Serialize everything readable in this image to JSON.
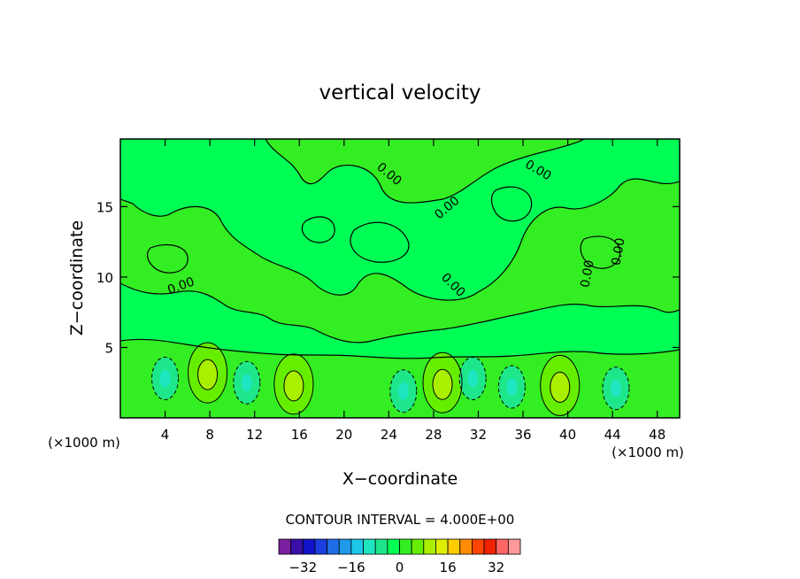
{
  "chart_data": {
    "type": "heatmap",
    "title": "vertical velocity",
    "xlabel": "X−coordinate",
    "ylabel": "Z−coordinate",
    "x_unit": "(×1000 m)",
    "y_unit": "(×1000 m)",
    "xlim": [
      0,
      50
    ],
    "ylim": [
      0,
      19.8
    ],
    "x_ticks": [
      4,
      8,
      12,
      16,
      20,
      24,
      28,
      32,
      36,
      40,
      44,
      48
    ],
    "y_ticks": [
      5,
      10,
      15
    ],
    "contour_interval_text": "CONTOUR INTERVAL = 4.000E+00",
    "contour_line_label": "0.00",
    "colorbar": {
      "levels": [
        -36,
        -32,
        -28,
        -24,
        -20,
        -16,
        -12,
        -8,
        -4,
        0,
        4,
        8,
        12,
        16,
        20,
        24,
        28,
        32,
        36
      ],
      "colors": [
        "#7a1fa0",
        "#3a0fa8",
        "#1212c8",
        "#1a3ee0",
        "#1f6ee8",
        "#1e9ae8",
        "#1ec8e8",
        "#1ee6c0",
        "#1ee68a",
        "#00ff55",
        "#33ee22",
        "#66ee00",
        "#aaee00",
        "#ddee00",
        "#ffcc00",
        "#ff8c00",
        "#ff4400",
        "#ee2200",
        "#ff6666",
        "#ff9999"
      ],
      "tick_labels": [
        {
          "value": -32,
          "text": "−32"
        },
        {
          "value": -16,
          "text": "−16"
        },
        {
          "value": 0,
          "text": "0"
        },
        {
          "value": 16,
          "text": "16"
        },
        {
          "value": 32,
          "text": "32"
        }
      ]
    },
    "features": [
      {
        "x": 7.8,
        "z": 3.2,
        "sign": "positive"
      },
      {
        "x": 15.5,
        "z": 2.4,
        "sign": "positive"
      },
      {
        "x": 28.8,
        "z": 2.5,
        "sign": "positive"
      },
      {
        "x": 39.3,
        "z": 2.3,
        "sign": "positive"
      },
      {
        "x": 4.0,
        "z": 2.8,
        "sign": "negative"
      },
      {
        "x": 11.3,
        "z": 2.5,
        "sign": "negative"
      },
      {
        "x": 25.3,
        "z": 1.9,
        "sign": "negative"
      },
      {
        "x": 31.5,
        "z": 2.8,
        "sign": "negative"
      },
      {
        "x": 35.0,
        "z": 2.2,
        "sign": "negative"
      },
      {
        "x": 44.3,
        "z": 2.1,
        "sign": "negative"
      }
    ]
  }
}
